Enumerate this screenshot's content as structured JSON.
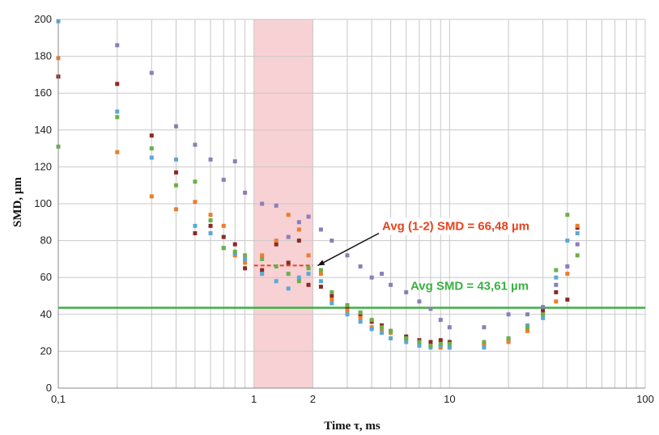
{
  "chart_data": {
    "type": "scatter",
    "title": "",
    "xlabel": "Time τ, ms",
    "ylabel": "SMD, µm",
    "x_scale": "log",
    "xlim": [
      0.1,
      100
    ],
    "ylim": [
      0,
      200
    ],
    "grid": true,
    "x_ticks": [
      {
        "value": 0.1,
        "label": "0,1"
      },
      {
        "value": 1,
        "label": "1"
      },
      {
        "value": 2,
        "label": "2"
      },
      {
        "value": 10,
        "label": "10"
      },
      {
        "value": 100,
        "label": "100"
      }
    ],
    "y_ticks": [
      0,
      20,
      40,
      60,
      80,
      100,
      120,
      140,
      160,
      180,
      200
    ],
    "highlight_band": {
      "x_from": 1,
      "x_to": 2,
      "color": "#f7c9cc"
    },
    "reference_lines": [
      {
        "label": "Avg SMD = 43,61 µm",
        "y": 43.61,
        "x_from": 0.1,
        "x_to": 100,
        "color": "#3cb043"
      },
      {
        "label": "Avg (1-2) SMD = 66,48 µm",
        "y": 66.48,
        "x_from": 1,
        "x_to": 2,
        "color": "#e8431e"
      }
    ],
    "series": [
      {
        "color": "#8b2a25",
        "points": [
          [
            0.1,
            169
          ],
          [
            0.2,
            165
          ],
          [
            0.3,
            137
          ],
          [
            0.4,
            117
          ],
          [
            0.5,
            84
          ],
          [
            0.6,
            88
          ],
          [
            0.7,
            82
          ],
          [
            0.8,
            78
          ],
          [
            0.9,
            65
          ],
          [
            1.1,
            64
          ],
          [
            1.3,
            78
          ],
          [
            1.5,
            68
          ],
          [
            1.7,
            80
          ],
          [
            1.9,
            56
          ],
          [
            2.2,
            55
          ],
          [
            2.5,
            50
          ],
          [
            3,
            44
          ],
          [
            3.5,
            40
          ],
          [
            4,
            36
          ],
          [
            4.5,
            34
          ],
          [
            5,
            31
          ],
          [
            6,
            28
          ],
          [
            7,
            26
          ],
          [
            8,
            25
          ],
          [
            9,
            26
          ],
          [
            10,
            25
          ],
          [
            15,
            24
          ],
          [
            20,
            26
          ],
          [
            25,
            33
          ],
          [
            30,
            42
          ],
          [
            35,
            52
          ],
          [
            40,
            48
          ],
          [
            45,
            87
          ]
        ]
      },
      {
        "color": "#ec7d2e",
        "points": [
          [
            0.1,
            179
          ],
          [
            0.2,
            128
          ],
          [
            0.3,
            104
          ],
          [
            0.4,
            97
          ],
          [
            0.5,
            101
          ],
          [
            0.6,
            94
          ],
          [
            0.7,
            88
          ],
          [
            0.8,
            72
          ],
          [
            0.9,
            68
          ],
          [
            1.1,
            72
          ],
          [
            1.3,
            80
          ],
          [
            1.5,
            94
          ],
          [
            1.7,
            86
          ],
          [
            1.9,
            72
          ],
          [
            2.2,
            62
          ],
          [
            2.5,
            48
          ],
          [
            3,
            42
          ],
          [
            3.5,
            38
          ],
          [
            4,
            33
          ],
          [
            4.5,
            32
          ],
          [
            5,
            30
          ],
          [
            6,
            26
          ],
          [
            7,
            24
          ],
          [
            8,
            23
          ],
          [
            9,
            22
          ],
          [
            10,
            22
          ],
          [
            15,
            23
          ],
          [
            20,
            25
          ],
          [
            25,
            31
          ],
          [
            30,
            40
          ],
          [
            35,
            47
          ],
          [
            40,
            62
          ],
          [
            45,
            88
          ]
        ]
      },
      {
        "color": "#5aa9d6",
        "points": [
          [
            0.1,
            199
          ],
          [
            0.2,
            150
          ],
          [
            0.3,
            125
          ],
          [
            0.4,
            124
          ],
          [
            0.5,
            88
          ],
          [
            0.6,
            84
          ],
          [
            0.7,
            76
          ],
          [
            0.8,
            73
          ],
          [
            0.9,
            70
          ],
          [
            1.1,
            62
          ],
          [
            1.3,
            58
          ],
          [
            1.5,
            54
          ],
          [
            1.7,
            60
          ],
          [
            1.9,
            62
          ],
          [
            2.2,
            58
          ],
          [
            2.5,
            46
          ],
          [
            3,
            40
          ],
          [
            3.5,
            36
          ],
          [
            4,
            32
          ],
          [
            4.5,
            30
          ],
          [
            5,
            27
          ],
          [
            6,
            25
          ],
          [
            7,
            23
          ],
          [
            8,
            22
          ],
          [
            9,
            23
          ],
          [
            10,
            22
          ],
          [
            15,
            22
          ],
          [
            20,
            27
          ],
          [
            25,
            34
          ],
          [
            30,
            38
          ],
          [
            35,
            60
          ],
          [
            40,
            80
          ],
          [
            45,
            84
          ]
        ]
      },
      {
        "color": "#6bb04a",
        "points": [
          [
            0.1,
            131
          ],
          [
            0.2,
            147
          ],
          [
            0.3,
            130
          ],
          [
            0.4,
            110
          ],
          [
            0.5,
            112
          ],
          [
            0.6,
            91
          ],
          [
            0.7,
            76
          ],
          [
            0.8,
            74
          ],
          [
            0.9,
            72
          ],
          [
            1.1,
            70
          ],
          [
            1.3,
            66
          ],
          [
            1.5,
            62
          ],
          [
            1.7,
            58
          ],
          [
            1.9,
            65
          ],
          [
            2.2,
            64
          ],
          [
            2.5,
            52
          ],
          [
            3,
            45
          ],
          [
            3.5,
            41
          ],
          [
            4,
            37
          ],
          [
            4.5,
            33
          ],
          [
            5,
            31
          ],
          [
            6,
            27
          ],
          [
            7,
            25
          ],
          [
            8,
            23
          ],
          [
            9,
            24
          ],
          [
            10,
            24
          ],
          [
            15,
            25
          ],
          [
            20,
            27
          ],
          [
            25,
            33
          ],
          [
            30,
            40
          ],
          [
            35,
            64
          ],
          [
            40,
            94
          ],
          [
            45,
            72
          ]
        ]
      },
      {
        "color": "#8a7fb8",
        "points": [
          [
            0.2,
            186
          ],
          [
            0.3,
            171
          ],
          [
            0.4,
            142
          ],
          [
            0.5,
            132
          ],
          [
            0.6,
            124
          ],
          [
            0.7,
            113
          ],
          [
            0.8,
            123
          ],
          [
            0.9,
            106
          ],
          [
            1.1,
            100
          ],
          [
            1.3,
            99
          ],
          [
            1.5,
            82
          ],
          [
            1.7,
            90
          ],
          [
            1.9,
            93
          ],
          [
            2.2,
            86
          ],
          [
            2.5,
            80
          ],
          [
            3,
            72
          ],
          [
            3.5,
            66
          ],
          [
            4,
            60
          ],
          [
            4.5,
            62
          ],
          [
            5,
            56
          ],
          [
            6,
            52
          ],
          [
            7,
            47
          ],
          [
            8,
            43
          ],
          [
            9,
            37
          ],
          [
            10,
            33
          ],
          [
            15,
            33
          ],
          [
            20,
            40
          ],
          [
            25,
            40
          ],
          [
            30,
            44
          ],
          [
            35,
            56
          ],
          [
            40,
            66
          ],
          [
            45,
            78
          ]
        ]
      }
    ]
  }
}
